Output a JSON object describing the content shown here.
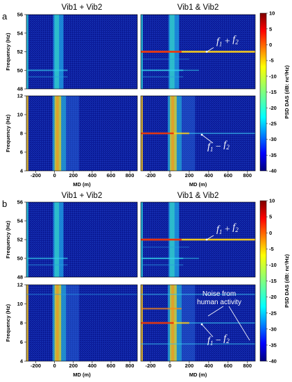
{
  "chart_data": [
    {
      "type": "heatmap",
      "panel": "a",
      "subtitles": [
        "Vib1 + Vib2",
        "Vib1 & Vib2"
      ],
      "xlabel": "MD (m)",
      "xlim": [
        -300,
        880
      ],
      "xticks": [
        "-200",
        "0",
        "200",
        "400",
        "600",
        "800"
      ],
      "top_plot": {
        "ylabel": "Frequency (Hz)",
        "ylim": [
          48,
          56
        ],
        "yticks": [
          "48",
          "50",
          "52",
          "54",
          "56"
        ]
      },
      "bottom_plot": {
        "ylabel": "Frequency (Hz)",
        "ylim": [
          4,
          12
        ],
        "yticks": [
          "4",
          "6",
          "8",
          "10",
          "12"
        ]
      },
      "annotations": [
        {
          "text": "f1 + f2",
          "base1": "f",
          "sub1": "1",
          "op": " + ",
          "base2": "f",
          "sub2": "2",
          "frequency": 52
        },
        {
          "text": "f1 − f2",
          "base1": "f",
          "sub1": "1",
          "op": " − ",
          "base2": "f",
          "sub2": "2",
          "frequency": 8
        }
      ]
    },
    {
      "type": "heatmap",
      "panel": "b",
      "subtitles": [
        "Vib1 + Vib2",
        "Vib1 & Vib2"
      ],
      "xlabel": "MD (m)",
      "xlim": [
        -300,
        880
      ],
      "xticks": [
        "-200",
        "0",
        "200",
        "400",
        "600",
        "800"
      ],
      "top_plot": {
        "ylabel": "Frequency (Hz)",
        "ylim": [
          48,
          56
        ],
        "yticks": [
          "48",
          "50",
          "52",
          "54",
          "56"
        ]
      },
      "bottom_plot": {
        "ylabel": "Frequency (Hz)",
        "ylim": [
          4,
          12
        ],
        "yticks": [
          "4",
          "6",
          "8",
          "10",
          "12"
        ]
      },
      "annotations": [
        {
          "text": "f1 + f2",
          "base1": "f",
          "sub1": "1",
          "op": " + ",
          "base2": "f",
          "sub2": "2",
          "frequency": 52
        },
        {
          "text": "f1 − f2",
          "base1": "f",
          "sub1": "1",
          "op": " − ",
          "base2": "f",
          "sub2": "2",
          "frequency": 8
        },
        {
          "text_lines": [
            "Noise from",
            "human activity"
          ]
        }
      ]
    }
  ],
  "colorbar": {
    "label": "PSD DAS (dB: nε²/Hz)",
    "range": [
      -40,
      10
    ],
    "ticks": [
      "10",
      "5",
      "0",
      "-5",
      "-10",
      "-15",
      "-20",
      "-25",
      "-30",
      "-35",
      "-40"
    ],
    "colormap": "jet"
  },
  "colors": {
    "background_low": "#0a1a9a",
    "band_high": "#e52010",
    "annotation": "#ffffff"
  }
}
